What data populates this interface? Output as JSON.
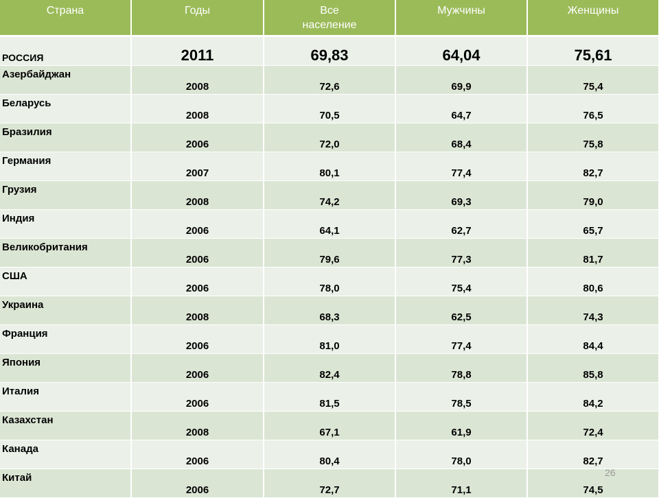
{
  "header": {
    "country": "Страна",
    "years": "Годы",
    "all_line1": "Все",
    "all_line2": "население",
    "men": "Мужчины",
    "women": "Женщины"
  },
  "russia": {
    "country": "РОССИЯ",
    "year": "2011",
    "all": "69,83",
    "men": "64,04",
    "women": "75,61"
  },
  "rows": [
    {
      "country": "Азербайджан",
      "year": "2008",
      "all": "72,6",
      "men": "69,9",
      "women": "75,4"
    },
    {
      "country": "Беларусь",
      "year": "2008",
      "all": "70,5",
      "men": "64,7",
      "women": "76,5"
    },
    {
      "country": "Бразилия",
      "year": "2006",
      "all": "72,0",
      "men": "68,4",
      "women": "75,8"
    },
    {
      "country": "Германия",
      "year": "2007",
      "all": "80,1",
      "men": "77,4",
      "women": "82,7"
    },
    {
      "country": "Грузия",
      "year": "2008",
      "all": "74,2",
      "men": "69,3",
      "women": "79,0"
    },
    {
      "country": "Индия",
      "year": "2006",
      "all": "64,1",
      "men": "62,7",
      "women": "65,7"
    },
    {
      "country": "Великобритания",
      "year": "2006",
      "all": "79,6",
      "men": "77,3",
      "women": "81,7"
    },
    {
      "country": "США",
      "year": "2006",
      "all": "78,0",
      "men": "75,4",
      "women": "80,6"
    },
    {
      "country": "Украина",
      "year": "2008",
      "all": "68,3",
      "men": "62,5",
      "women": "74,3"
    },
    {
      "country": "Франция",
      "year": "2006",
      "all": "81,0",
      "men": "77,4",
      "women": "84,4"
    },
    {
      "country": "Япония",
      "year": "2006",
      "all": "82,4",
      "men": "78,8",
      "women": "85,8"
    },
    {
      "country": "Италия",
      "year": "2006",
      "all": "81,5",
      "men": "78,5",
      "women": "84,2"
    },
    {
      "country": "Казахстан",
      "year": "2008",
      "all": "67,1",
      "men": "61,9",
      "women": "72,4"
    },
    {
      "country": "Канада",
      "year": "2006",
      "all": "80,4",
      "men": "78,0",
      "women": "82,7"
    },
    {
      "country": "Китай",
      "year": "2006",
      "all": "72,7",
      "men": "71,1",
      "women": "74,5"
    }
  ],
  "page_number": "26"
}
